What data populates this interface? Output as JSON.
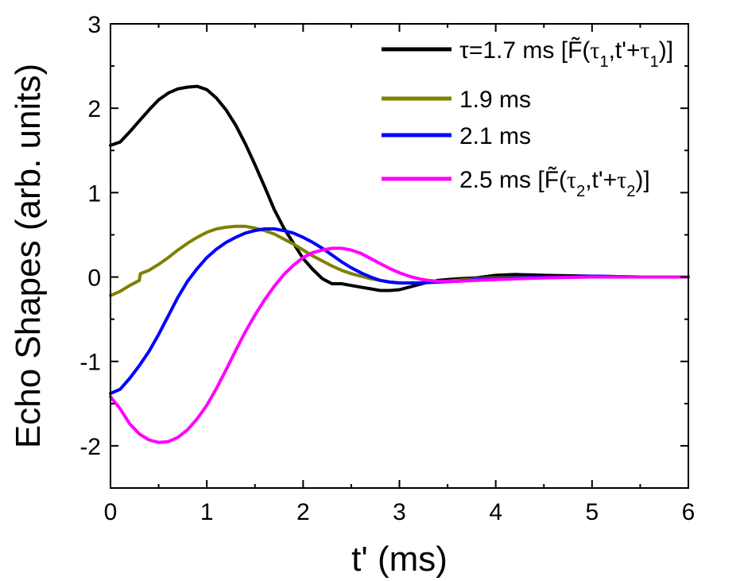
{
  "chart_data": {
    "type": "line",
    "title": "",
    "xlabel": "t' (ms)",
    "ylabel": "Echo Shapes (arb. units)",
    "xlim": [
      0,
      6
    ],
    "ylim": [
      -2.5,
      3
    ],
    "xticks": [
      0,
      1,
      2,
      3,
      4,
      5,
      6
    ],
    "xtick_labels": [
      "0",
      "1",
      "2",
      "3",
      "4",
      "5",
      "6"
    ],
    "yticks": [
      -2,
      -1,
      0,
      1,
      2,
      3
    ],
    "ytick_labels": [
      "-2",
      "-1",
      "0",
      "1",
      "2",
      "3"
    ],
    "x_minor_step": 0.5,
    "y_minor_step": 0.5,
    "grid": false,
    "legend_position": "top-right",
    "series": [
      {
        "name": "τ=1.7 ms [F̃(τ1,t'+τ1)]",
        "legend": {
          "prefix": "τ=1.7 ms [",
          "func": "F̃",
          "open": "(",
          "sym1": "τ",
          "sub1": "1",
          "mid": ",t'+",
          "sym2": "τ",
          "sub2": "1",
          "close": ")]"
        },
        "color": "#000000",
        "points": [
          [
            0,
            1.56
          ],
          [
            0.1,
            1.6
          ],
          [
            0.2,
            1.72
          ],
          [
            0.3,
            1.85
          ],
          [
            0.4,
            1.98
          ],
          [
            0.5,
            2.1
          ],
          [
            0.6,
            2.18
          ],
          [
            0.7,
            2.23
          ],
          [
            0.8,
            2.25
          ],
          [
            0.9,
            2.26
          ],
          [
            1.0,
            2.22
          ],
          [
            1.1,
            2.12
          ],
          [
            1.2,
            1.98
          ],
          [
            1.3,
            1.8
          ],
          [
            1.4,
            1.58
          ],
          [
            1.5,
            1.33
          ],
          [
            1.6,
            1.07
          ],
          [
            1.7,
            0.8
          ],
          [
            1.8,
            0.58
          ],
          [
            1.9,
            0.4
          ],
          [
            2.0,
            0.22
          ],
          [
            2.1,
            0.09
          ],
          [
            2.2,
            -0.02
          ],
          [
            2.3,
            -0.08
          ],
          [
            2.4,
            -0.08
          ],
          [
            2.5,
            -0.1
          ],
          [
            2.6,
            -0.12
          ],
          [
            2.7,
            -0.14
          ],
          [
            2.8,
            -0.16
          ],
          [
            2.9,
            -0.16
          ],
          [
            3.0,
            -0.15
          ],
          [
            3.1,
            -0.12
          ],
          [
            3.2,
            -0.09
          ],
          [
            3.3,
            -0.06
          ],
          [
            3.4,
            -0.04
          ],
          [
            3.5,
            -0.03
          ],
          [
            3.6,
            -0.02
          ],
          [
            3.8,
            -0.01
          ],
          [
            4.0,
            0.02
          ],
          [
            4.2,
            0.03
          ],
          [
            4.5,
            0.02
          ],
          [
            5.0,
            0.01
          ],
          [
            5.5,
            0.0
          ],
          [
            6.0,
            0.0
          ]
        ]
      },
      {
        "name": "1.9 ms",
        "legend": {
          "prefix": "1.9 ms"
        },
        "color": "#808000",
        "points": [
          [
            0,
            -0.22
          ],
          [
            0.1,
            -0.17
          ],
          [
            0.2,
            -0.1
          ],
          [
            0.3,
            -0.04
          ],
          [
            0.31,
            0.04
          ],
          [
            0.4,
            0.08
          ],
          [
            0.5,
            0.15
          ],
          [
            0.6,
            0.23
          ],
          [
            0.7,
            0.32
          ],
          [
            0.8,
            0.4
          ],
          [
            0.9,
            0.47
          ],
          [
            1.0,
            0.53
          ],
          [
            1.1,
            0.57
          ],
          [
            1.2,
            0.59
          ],
          [
            1.3,
            0.6
          ],
          [
            1.4,
            0.6
          ],
          [
            1.5,
            0.58
          ],
          [
            1.6,
            0.55
          ],
          [
            1.7,
            0.51
          ],
          [
            1.8,
            0.45
          ],
          [
            1.9,
            0.39
          ],
          [
            2.0,
            0.32
          ],
          [
            2.1,
            0.25
          ],
          [
            2.2,
            0.19
          ],
          [
            2.3,
            0.13
          ],
          [
            2.4,
            0.08
          ],
          [
            2.5,
            0.04
          ],
          [
            2.6,
            0.01
          ],
          [
            2.7,
            -0.02
          ],
          [
            2.8,
            -0.04
          ],
          [
            2.9,
            -0.06
          ],
          [
            3.0,
            -0.07
          ],
          [
            3.2,
            -0.07
          ],
          [
            3.4,
            -0.06
          ],
          [
            3.6,
            -0.04
          ],
          [
            3.8,
            -0.02
          ],
          [
            4.0,
            -0.01
          ],
          [
            4.5,
            0.0
          ],
          [
            5.0,
            0.0
          ],
          [
            6.0,
            0.0
          ]
        ]
      },
      {
        "name": "2.1 ms",
        "legend": {
          "prefix": "2.1 ms"
        },
        "color": "#0000ff",
        "points": [
          [
            0,
            -1.38
          ],
          [
            0.1,
            -1.33
          ],
          [
            0.2,
            -1.2
          ],
          [
            0.3,
            -1.05
          ],
          [
            0.4,
            -0.88
          ],
          [
            0.5,
            -0.68
          ],
          [
            0.6,
            -0.46
          ],
          [
            0.7,
            -0.24
          ],
          [
            0.8,
            -0.05
          ],
          [
            0.9,
            0.1
          ],
          [
            1.0,
            0.23
          ],
          [
            1.1,
            0.33
          ],
          [
            1.2,
            0.41
          ],
          [
            1.3,
            0.47
          ],
          [
            1.4,
            0.52
          ],
          [
            1.5,
            0.55
          ],
          [
            1.6,
            0.57
          ],
          [
            1.7,
            0.57
          ],
          [
            1.8,
            0.55
          ],
          [
            1.9,
            0.52
          ],
          [
            2.0,
            0.47
          ],
          [
            2.1,
            0.41
          ],
          [
            2.2,
            0.34
          ],
          [
            2.3,
            0.26
          ],
          [
            2.4,
            0.18
          ],
          [
            2.5,
            0.11
          ],
          [
            2.6,
            0.05
          ],
          [
            2.7,
            0.0
          ],
          [
            2.8,
            -0.04
          ],
          [
            2.9,
            -0.06
          ],
          [
            3.0,
            -0.07
          ],
          [
            3.2,
            -0.07
          ],
          [
            3.4,
            -0.06
          ],
          [
            3.6,
            -0.05
          ],
          [
            3.8,
            -0.03
          ],
          [
            4.0,
            -0.02
          ],
          [
            4.5,
            0.0
          ],
          [
            5.0,
            0.01
          ],
          [
            5.5,
            0.0
          ],
          [
            6.0,
            0.0
          ]
        ]
      },
      {
        "name": "2.5 ms [F̃(τ2,t'+τ2)]",
        "legend": {
          "prefix": "2.5 ms [",
          "func": "F̃",
          "open": "(",
          "sym1": "τ",
          "sub1": "2",
          "mid": ",t'+",
          "sym2": "τ",
          "sub2": "2",
          "close": ")]"
        },
        "color": "#ff00ff",
        "points": [
          [
            0,
            -1.42
          ],
          [
            0.1,
            -1.56
          ],
          [
            0.2,
            -1.74
          ],
          [
            0.3,
            -1.86
          ],
          [
            0.4,
            -1.93
          ],
          [
            0.5,
            -1.96
          ],
          [
            0.6,
            -1.95
          ],
          [
            0.7,
            -1.9
          ],
          [
            0.8,
            -1.81
          ],
          [
            0.9,
            -1.68
          ],
          [
            1.0,
            -1.52
          ],
          [
            1.1,
            -1.32
          ],
          [
            1.2,
            -1.1
          ],
          [
            1.3,
            -0.87
          ],
          [
            1.4,
            -0.65
          ],
          [
            1.5,
            -0.45
          ],
          [
            1.6,
            -0.27
          ],
          [
            1.7,
            -0.11
          ],
          [
            1.8,
            0.03
          ],
          [
            1.9,
            0.14
          ],
          [
            2.0,
            0.23
          ],
          [
            2.1,
            0.29
          ],
          [
            2.2,
            0.32
          ],
          [
            2.3,
            0.34
          ],
          [
            2.4,
            0.34
          ],
          [
            2.5,
            0.32
          ],
          [
            2.6,
            0.28
          ],
          [
            2.7,
            0.22
          ],
          [
            2.8,
            0.16
          ],
          [
            2.9,
            0.1
          ],
          [
            3.0,
            0.05
          ],
          [
            3.1,
            0.01
          ],
          [
            3.2,
            -0.02
          ],
          [
            3.3,
            -0.04
          ],
          [
            3.4,
            -0.05
          ],
          [
            3.6,
            -0.05
          ],
          [
            3.8,
            -0.04
          ],
          [
            4.0,
            -0.03
          ],
          [
            4.5,
            -0.01
          ],
          [
            5.0,
            0.0
          ],
          [
            6.0,
            0.0
          ]
        ]
      }
    ]
  }
}
